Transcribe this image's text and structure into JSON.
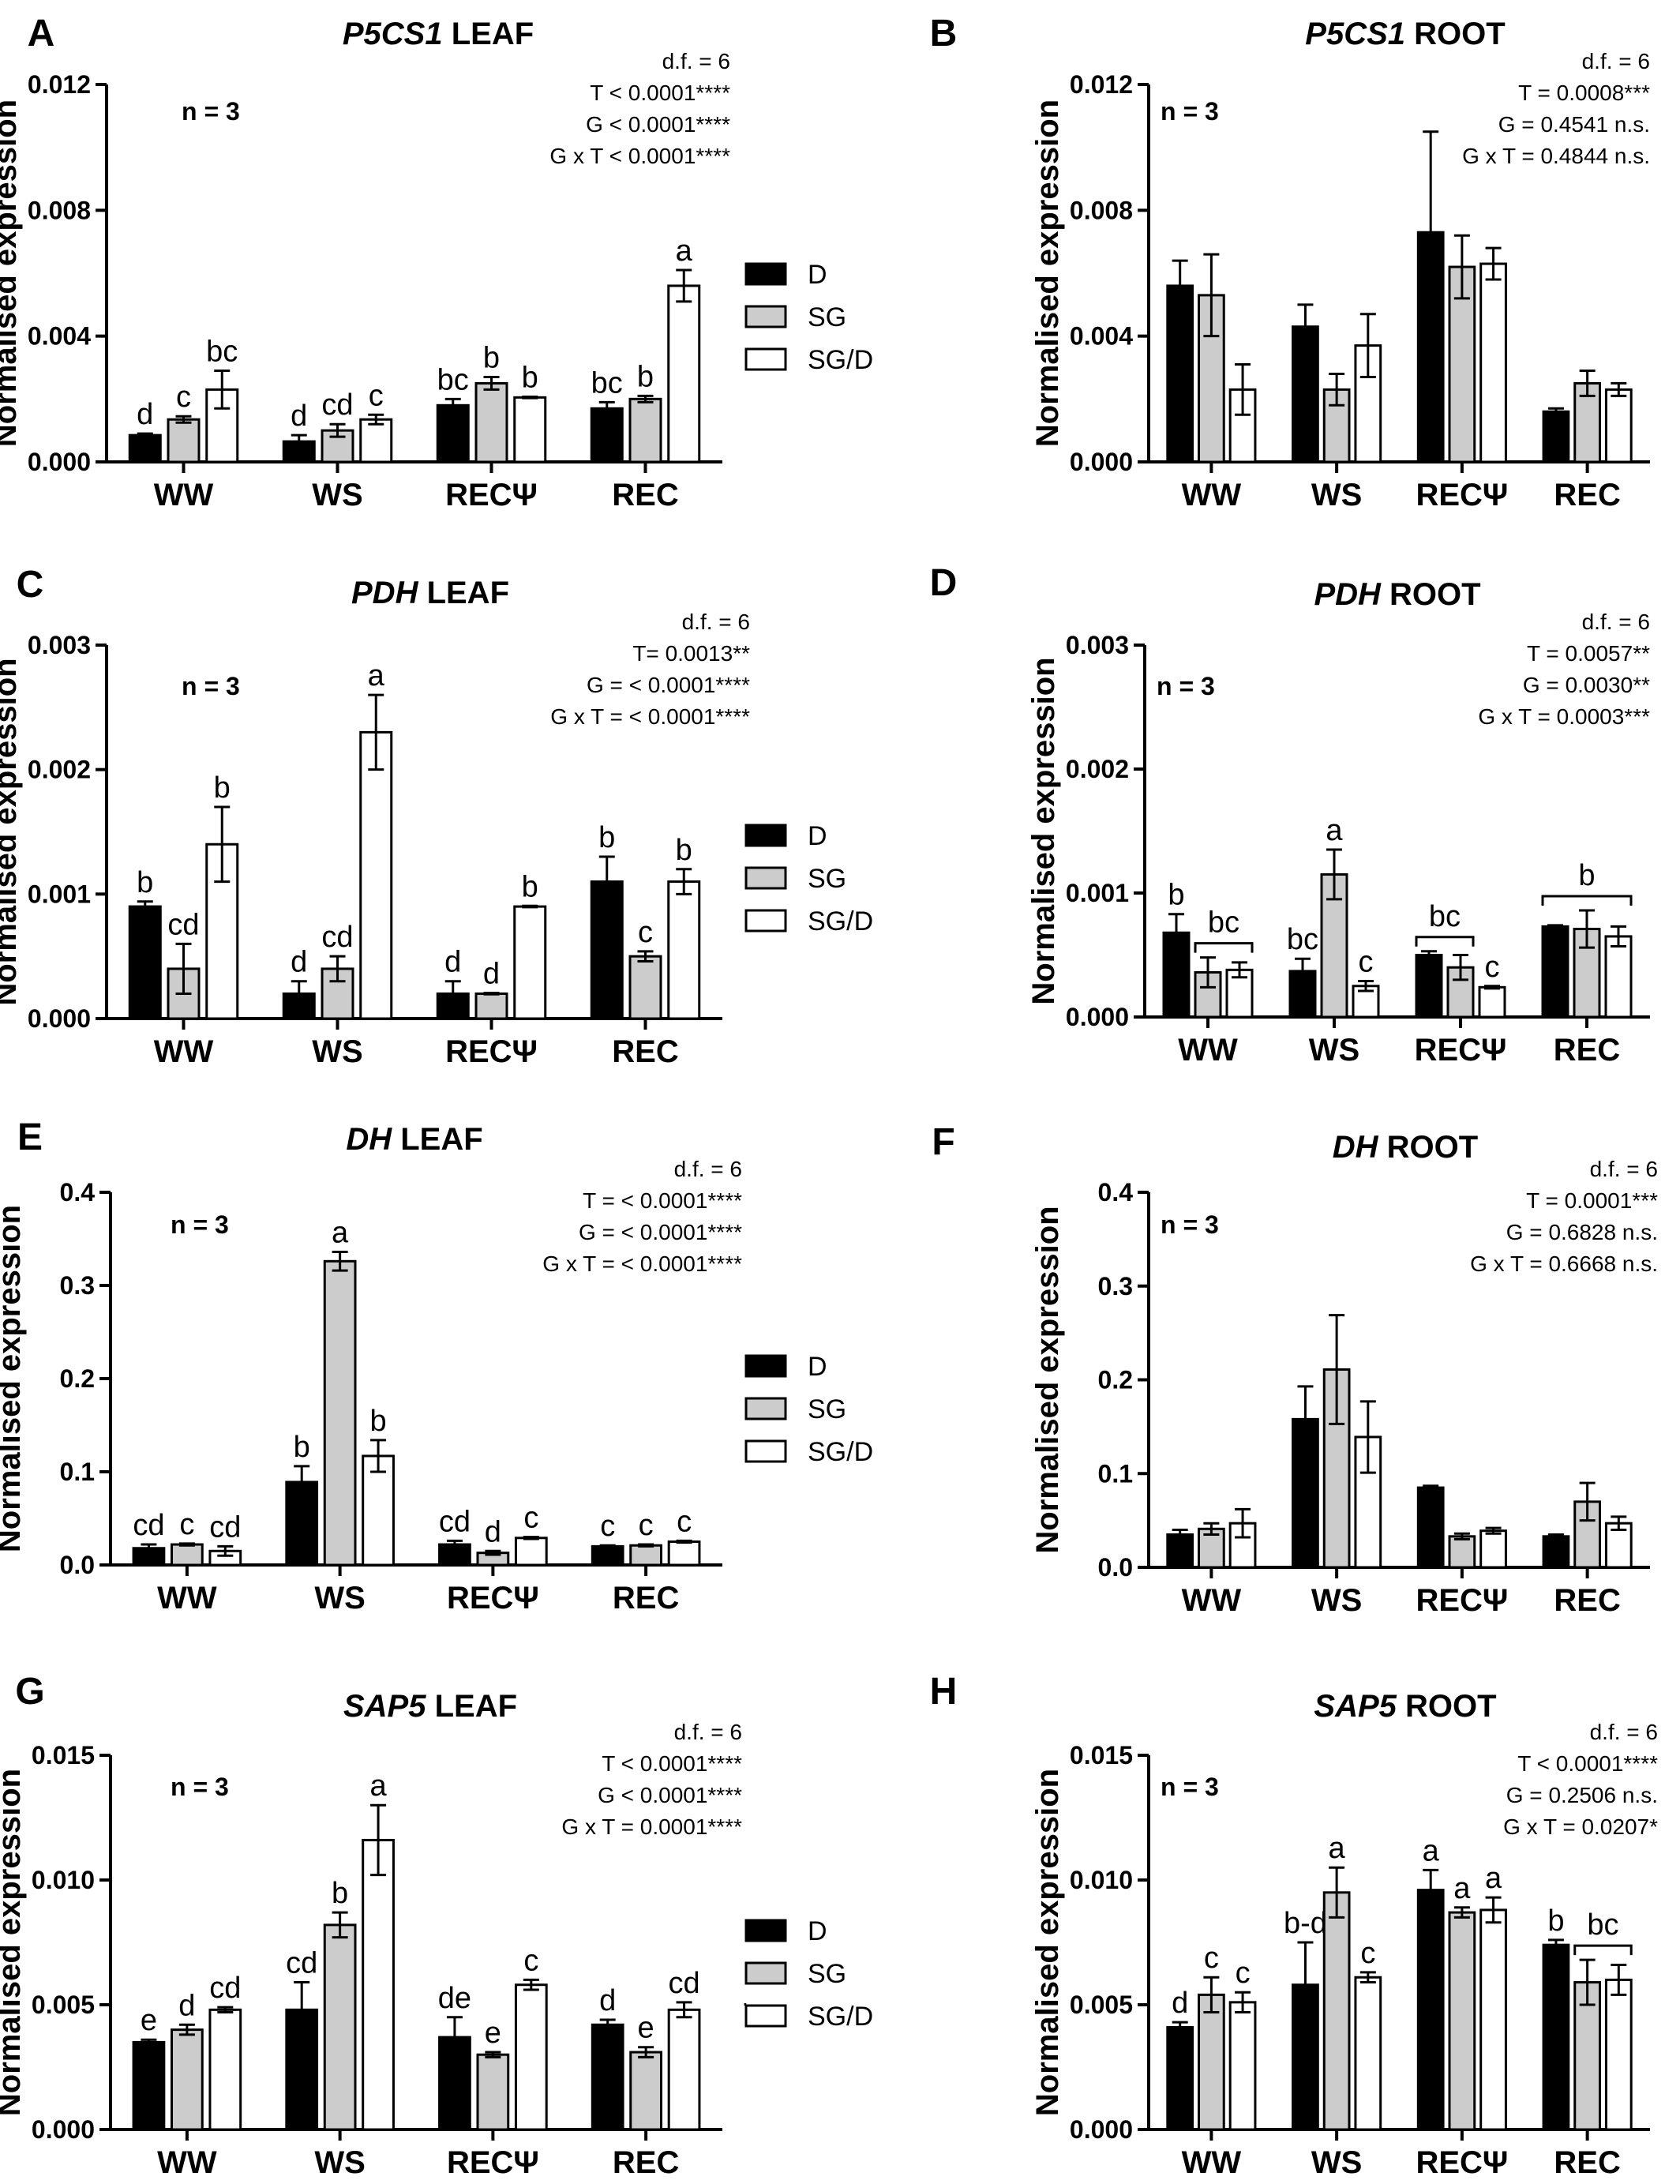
{
  "chart_data": [
    {
      "panel": "A",
      "gene": "P5CS1",
      "organ": "LEAF",
      "type": "bar",
      "ylabel": "Normalised expression",
      "ylim": [
        0,
        0.012
      ],
      "yticks": [
        "0.000",
        "0.004",
        "0.008",
        "0.012"
      ],
      "n_label": "n = 3",
      "stats": [
        "d.f. = 6",
        "T < 0.0001****",
        "G < 0.0001****",
        "G x T < 0.0001****"
      ],
      "categories": [
        "WW",
        "WS",
        "RECΨ",
        "REC"
      ],
      "series": [
        {
          "name": "D",
          "values": [
            0.00085,
            0.00065,
            0.0018,
            0.0017
          ],
          "errors": [
            5e-05,
            0.0002,
            0.0002,
            0.0002
          ]
        },
        {
          "name": "SG",
          "values": [
            0.00135,
            0.001,
            0.0025,
            0.002
          ],
          "errors": [
            0.0001,
            0.0002,
            0.0002,
            0.0001
          ]
        },
        {
          "name": "SG/D",
          "values": [
            0.0023,
            0.00135,
            0.00205,
            0.0056
          ],
          "errors": [
            0.0006,
            0.00015,
            2e-05,
            0.0005
          ]
        }
      ],
      "letters": [
        [
          "d",
          "c",
          "bc"
        ],
        [
          "d",
          "cd",
          "c"
        ],
        [
          "bc",
          "b",
          "b"
        ],
        [
          "bc",
          "b",
          "a"
        ]
      ],
      "legend": [
        "D",
        "SG",
        "SG/D"
      ]
    },
    {
      "panel": "B",
      "gene": "P5CS1",
      "organ": "ROOT",
      "type": "bar",
      "ylabel": "Normalised expression",
      "ylim": [
        0,
        0.012
      ],
      "yticks": [
        "0.000",
        "0.004",
        "0.008",
        "0.012"
      ],
      "n_label": "n = 3",
      "stats": [
        "d.f. = 6",
        "T = 0.0008***",
        "G = 0.4541 n.s.",
        "G x T = 0.4844 n.s."
      ],
      "categories": [
        "WW",
        "WS",
        "RECΨ",
        "REC"
      ],
      "series": [
        {
          "name": "D",
          "values": [
            0.0056,
            0.0043,
            0.0073,
            0.0016
          ],
          "errors": [
            0.0008,
            0.0007,
            0.0032,
            0.0001
          ]
        },
        {
          "name": "SG",
          "values": [
            0.0053,
            0.0023,
            0.0062,
            0.0025
          ],
          "errors": [
            0.0013,
            0.0005,
            0.001,
            0.0004
          ]
        },
        {
          "name": "SG/D",
          "values": [
            0.0023,
            0.0037,
            0.0063,
            0.0023
          ],
          "errors": [
            0.0008,
            0.001,
            0.0005,
            0.0002
          ]
        }
      ],
      "letters": [],
      "legend": []
    },
    {
      "panel": "C",
      "gene": "PDH",
      "organ": "LEAF",
      "type": "bar",
      "ylabel": "Normalised expression",
      "ylim": [
        0,
        0.003
      ],
      "yticks": [
        "0.000",
        "0.001",
        "0.002",
        "0.003"
      ],
      "n_label": "n = 3",
      "stats": [
        "d.f. = 6",
        "T= 0.0013**",
        "G = < 0.0001****",
        "G x T = < 0.0001****"
      ],
      "categories": [
        "WW",
        "WS",
        "RECΨ",
        "REC"
      ],
      "series": [
        {
          "name": "D",
          "values": [
            0.0009,
            0.0002,
            0.0002,
            0.0011
          ],
          "errors": [
            4e-05,
            0.0001,
            0.0001,
            0.0002
          ]
        },
        {
          "name": "SG",
          "values": [
            0.0004,
            0.0004,
            0.0002,
            0.0005
          ],
          "errors": [
            0.0002,
            0.0001,
            5e-06,
            4e-05
          ]
        },
        {
          "name": "SG/D",
          "values": [
            0.0014,
            0.0023,
            0.0009,
            0.0011
          ],
          "errors": [
            0.0003,
            0.0003,
            5e-06,
            0.0001
          ]
        }
      ],
      "letters": [
        [
          "b",
          "cd",
          "b"
        ],
        [
          "d",
          "cd",
          "a"
        ],
        [
          "d",
          "d",
          "b"
        ],
        [
          "b",
          "c",
          "b"
        ]
      ],
      "legend": [
        "D",
        "SG",
        "SG/D"
      ]
    },
    {
      "panel": "D",
      "gene": "PDH",
      "organ": "ROOT",
      "type": "bar",
      "ylabel": "Normalised expression",
      "ylim": [
        0,
        0.003
      ],
      "yticks": [
        "0.000",
        "0.001",
        "0.002",
        "0.003"
      ],
      "n_label": "n = 3",
      "stats": [
        "d.f. = 6",
        "T = 0.0057**",
        "G = 0.0030**",
        "G x T = 0.0003***"
      ],
      "categories": [
        "WW",
        "WS",
        "RECΨ",
        "REC"
      ],
      "series": [
        {
          "name": "D",
          "values": [
            0.00068,
            0.00037,
            0.0005,
            0.00073
          ],
          "errors": [
            0.00015,
            0.0001,
            3e-05,
            1e-05
          ]
        },
        {
          "name": "SG",
          "values": [
            0.00036,
            0.00115,
            0.0004,
            0.00071
          ],
          "errors": [
            0.00012,
            0.0002,
            0.0001,
            0.00015
          ]
        },
        {
          "name": "SG/D",
          "values": [
            0.00038,
            0.00025,
            0.00024,
            0.00065
          ],
          "errors": [
            6e-05,
            4e-05,
            1e-05,
            8e-05
          ]
        }
      ],
      "letters": [
        [
          "b",
          "",
          ""
        ],
        [
          "bc",
          "a",
          "c"
        ],
        [
          "",
          "",
          "c"
        ],
        [
          "",
          "",
          ""
        ]
      ],
      "brackets": [
        {
          "category": 0,
          "from": 1,
          "to": 2,
          "label": "bc"
        },
        {
          "category": 2,
          "from": 0,
          "to": 1,
          "label": "bc"
        },
        {
          "category": 3,
          "from": 0,
          "to": 2,
          "label": "b"
        }
      ],
      "legend": []
    },
    {
      "panel": "E",
      "gene": "DH",
      "organ": "LEAF",
      "type": "bar",
      "ylabel": "Normalised expression",
      "ylim": [
        0,
        0.4
      ],
      "yticks": [
        "0.0",
        "0.1",
        "0.2",
        "0.3",
        "0.4"
      ],
      "n_label": "n = 3",
      "stats": [
        "d.f. = 6",
        "T = < 0.0001****",
        "G = < 0.0001****",
        "G x T = < 0.0001****"
      ],
      "categories": [
        "WW",
        "WS",
        "RECΨ",
        "REC"
      ],
      "series": [
        {
          "name": "D",
          "values": [
            0.018,
            0.089,
            0.022,
            0.02
          ],
          "errors": [
            0.004,
            0.017,
            0.004,
            0.001
          ]
        },
        {
          "name": "SG",
          "values": [
            0.022,
            0.326,
            0.013,
            0.021
          ],
          "errors": [
            0.001,
            0.01,
            0.002,
            0.001
          ]
        },
        {
          "name": "SG/D",
          "values": [
            0.015,
            0.117,
            0.029,
            0.025
          ],
          "errors": [
            0.005,
            0.017,
            0.001,
            0.001
          ]
        }
      ],
      "letters": [
        [
          "cd",
          "c",
          "cd"
        ],
        [
          "b",
          "a",
          "b"
        ],
        [
          "cd",
          "d",
          "c"
        ],
        [
          "c",
          "c",
          "c"
        ]
      ],
      "legend": [
        "D",
        "SG",
        "SG/D"
      ]
    },
    {
      "panel": "F",
      "gene": "DH",
      "organ": "ROOT",
      "type": "bar",
      "ylabel": "Normalised expression",
      "ylim": [
        0,
        0.4
      ],
      "yticks": [
        "0.0",
        "0.1",
        "0.2",
        "0.3",
        "0.4"
      ],
      "n_label": "n = 3",
      "stats": [
        "d.f. = 6",
        "T = 0.0001***",
        "G = 0.6828 n.s.",
        "G x T = 0.6668 n.s."
      ],
      "categories": [
        "WW",
        "WS",
        "RECΨ",
        "REC"
      ],
      "series": [
        {
          "name": "D",
          "values": [
            0.035,
            0.158,
            0.085,
            0.033
          ],
          "errors": [
            0.005,
            0.035,
            0.002,
            0.002
          ]
        },
        {
          "name": "SG",
          "values": [
            0.041,
            0.211,
            0.033,
            0.07
          ],
          "errors": [
            0.006,
            0.058,
            0.003,
            0.02
          ]
        },
        {
          "name": "SG/D",
          "values": [
            0.047,
            0.139,
            0.039,
            0.047
          ],
          "errors": [
            0.015,
            0.038,
            0.003,
            0.007
          ]
        }
      ],
      "letters": [],
      "legend": []
    },
    {
      "panel": "G",
      "gene": "SAP5",
      "organ": "LEAF",
      "type": "bar",
      "ylabel": "Normalised expression",
      "ylim": [
        0,
        0.015
      ],
      "yticks": [
        "0.000",
        "0.005",
        "0.010",
        "0.015"
      ],
      "n_label": "n = 3",
      "stats": [
        "d.f. = 6",
        "T < 0.0001****",
        "G < 0.0001****",
        "G x T = 0.0001****"
      ],
      "categories": [
        "WW",
        "WS",
        "RECΨ",
        "REC"
      ],
      "series": [
        {
          "name": "D",
          "values": [
            0.0035,
            0.0048,
            0.0037,
            0.0042
          ],
          "errors": [
            0.0001,
            0.0011,
            0.0008,
            0.0002
          ]
        },
        {
          "name": "SG",
          "values": [
            0.004,
            0.0082,
            0.003,
            0.0031
          ],
          "errors": [
            0.0002,
            0.0005,
            0.0001,
            0.0002
          ]
        },
        {
          "name": "SG/D",
          "values": [
            0.0048,
            0.0116,
            0.0058,
            0.0048
          ],
          "errors": [
            0.0001,
            0.0014,
            0.0002,
            0.0003
          ]
        }
      ],
      "letters": [
        [
          "e",
          "d",
          "cd"
        ],
        [
          "cd",
          "b",
          "a"
        ],
        [
          "de",
          "e",
          "c"
        ],
        [
          "d",
          "e",
          "cd"
        ]
      ],
      "legend": [
        "D",
        "SG",
        "SG/D"
      ]
    },
    {
      "panel": "H",
      "gene": "SAP5",
      "organ": "ROOT",
      "type": "bar",
      "ylabel": "Normalised expression",
      "ylim": [
        0,
        0.015
      ],
      "yticks": [
        "0.000",
        "0.005",
        "0.010",
        "0.015"
      ],
      "n_label": "n = 3",
      "stats": [
        "d.f. = 6",
        "T < 0.0001****",
        "G = 0.2506 n.s.",
        "G x T = 0.0207*"
      ],
      "categories": [
        "WW",
        "WS",
        "RECΨ",
        "REC"
      ],
      "series": [
        {
          "name": "D",
          "values": [
            0.0041,
            0.0058,
            0.0096,
            0.0074
          ],
          "errors": [
            0.0002,
            0.0017,
            0.0008,
            0.0002
          ]
        },
        {
          "name": "SG",
          "values": [
            0.0054,
            0.0095,
            0.0087,
            0.0059
          ],
          "errors": [
            0.0007,
            0.001,
            0.0002,
            0.0009
          ]
        },
        {
          "name": "SG/D",
          "values": [
            0.0051,
            0.0061,
            0.0088,
            0.006
          ],
          "errors": [
            0.0004,
            0.0002,
            0.0005,
            0.0006
          ]
        }
      ],
      "letters": [
        [
          "d",
          "c",
          "c"
        ],
        [
          "b-d",
          "a",
          "c"
        ],
        [
          "a",
          "a",
          "a"
        ],
        [
          "b",
          "",
          ""
        ]
      ],
      "brackets": [
        {
          "category": 3,
          "from": 1,
          "to": 2,
          "label": "bc"
        }
      ],
      "legend": []
    }
  ],
  "colors": {
    "D": "#000000",
    "SG": "#cccccc",
    "SG/D": "#ffffff"
  },
  "stray_mark": "."
}
